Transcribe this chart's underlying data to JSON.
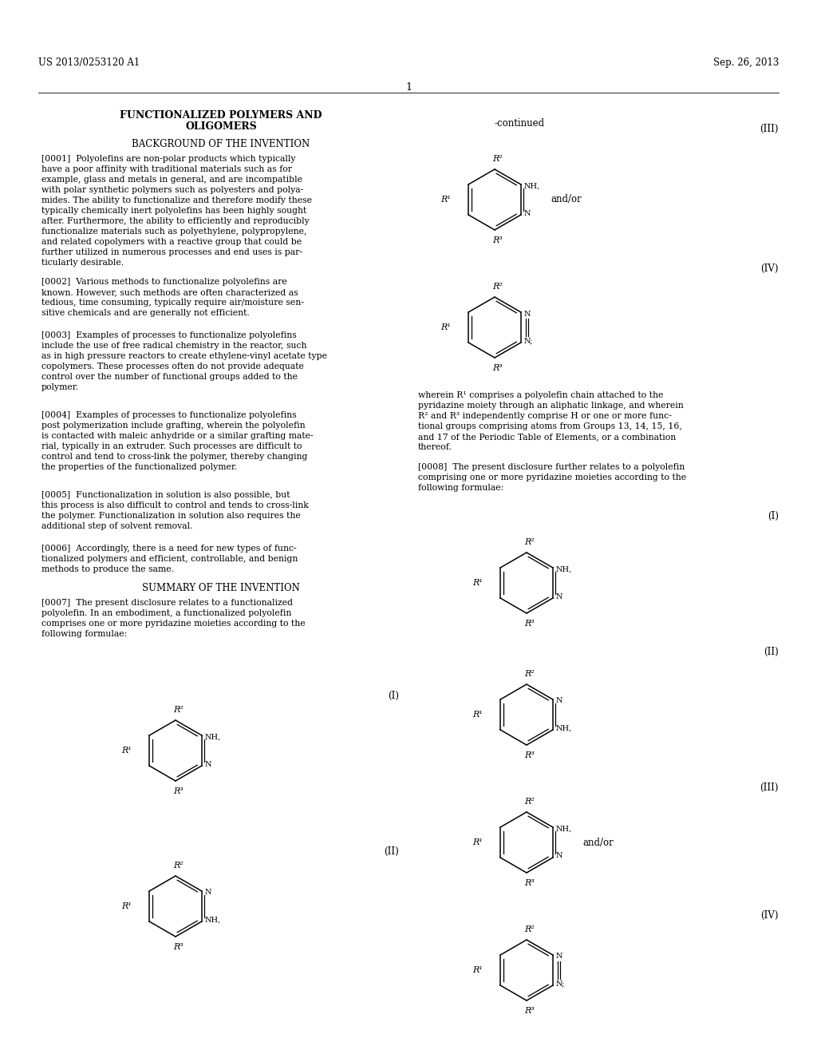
{
  "header_left": "US 2013/0253120 A1",
  "header_right": "Sep. 26, 2013",
  "page_number": "1",
  "continued_label": "-continued",
  "title_line1": "FUNCTIONALIZED POLYMERS AND",
  "title_line2": "OLIGOMERS",
  "section1": "BACKGROUND OF THE INVENTION",
  "section2": "SUMMARY OF THE INVENTION",
  "bg_color": "#ffffff",
  "text_color": "#000000"
}
